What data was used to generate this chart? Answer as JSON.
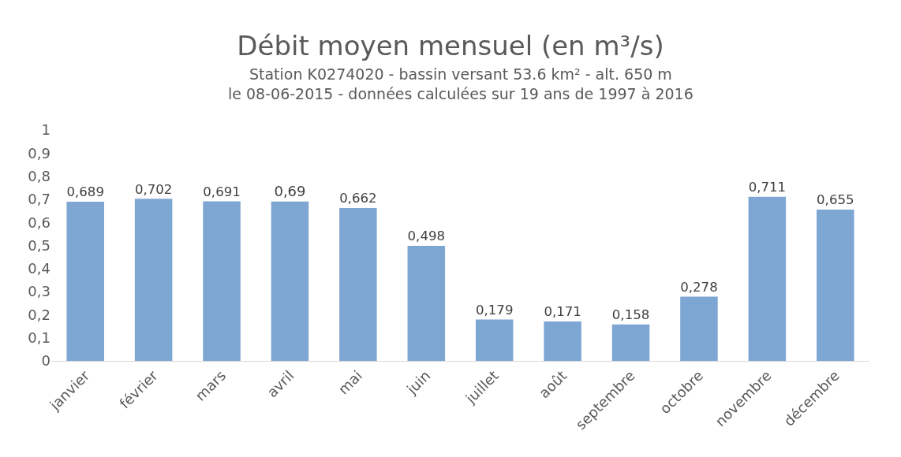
{
  "chart_data": {
    "type": "bar",
    "title": "Débit moyen mensuel (en m³/s)",
    "subtitle": "Station K0274020 - bassin versant 53.6 km² - alt. 650 m\nle 08-06-2015 - données calculées sur 19 ans de 1997 à 2016",
    "categories": [
      "janvier",
      "février",
      "mars",
      "avril",
      "mai",
      "juin",
      "juillet",
      "août",
      "septembre",
      "octobre",
      "novembre",
      "décembre"
    ],
    "values": [
      0.689,
      0.702,
      0.691,
      0.69,
      0.662,
      0.498,
      0.179,
      0.171,
      0.158,
      0.278,
      0.711,
      0.655
    ],
    "value_labels": [
      "0,689",
      "0,702",
      "0,691",
      "0,69",
      "0,662",
      "0,498",
      "0,179",
      "0,171",
      "0,158",
      "0,278",
      "0,711",
      "0,655"
    ],
    "color": "#7ea6d3",
    "ylim": [
      0,
      1
    ],
    "yticks": [
      0,
      {
        "value": 0.1,
        "label": "0,1"
      },
      {
        "value": 0.2,
        "label": "0,2"
      },
      {
        "value": 0.3,
        "label": "0,3"
      },
      {
        "value": 0.4,
        "label": "0,4"
      },
      {
        "value": 0.5,
        "label": "0,5"
      },
      {
        "value": 0.6,
        "label": "0,6"
      },
      {
        "value": 0.7,
        "label": "0,7"
      },
      {
        "value": 0.8,
        "label": "0,8"
      },
      {
        "value": 0.9,
        "label": "0,9"
      },
      1
    ],
    "grid": false
  }
}
